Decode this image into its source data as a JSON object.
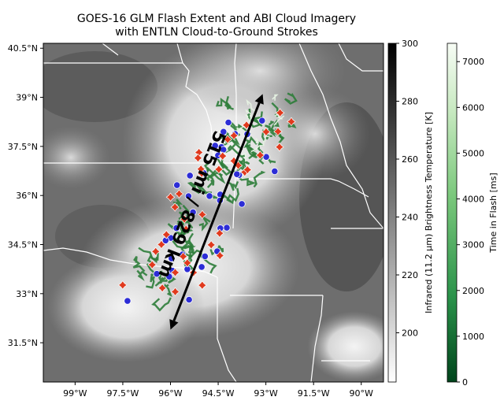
{
  "title_line1": "GOES-16 GLM Flash Extent and ABI Cloud Imagery",
  "title_line2": "with ENTLN Cloud-to-Ground Strokes",
  "map": {
    "lon_ticks": [
      "99°W",
      "97.5°W",
      "96°W",
      "94.5°W",
      "93°W",
      "91.5°W",
      "90°W"
    ],
    "lon_values": [
      -99,
      -97.5,
      -96,
      -94.5,
      -93,
      -91.5,
      -90
    ],
    "lat_ticks": [
      "40.5°N",
      "39°N",
      "37.5°N",
      "36°N",
      "34.5°N",
      "33°N",
      "31.5°N"
    ],
    "lat_values": [
      40.5,
      39,
      37.5,
      36,
      34.5,
      33,
      31.5
    ],
    "lon_range": [
      -100.0,
      -89.3
    ],
    "lat_range": [
      30.3,
      40.65
    ],
    "annotation": "515 mi / 829 km",
    "arrow_start": {
      "lon": -96.0,
      "lat": 31.9
    },
    "arrow_end": {
      "lon": -93.1,
      "lat": 39.1
    },
    "positive_strokes_color": "#2d2dd6",
    "negative_strokes_color": "#e03a1e",
    "flash_color": "#2e7d3a"
  },
  "colorbar_ir": {
    "label": "Infrared (11.2 μm) Brightness Temperature [K]",
    "ticks": [
      "300",
      "280",
      "260",
      "240",
      "220",
      "200"
    ],
    "tick_values": [
      300,
      280,
      260,
      240,
      220,
      200
    ],
    "range": [
      183,
      300
    ]
  },
  "colorbar_flash": {
    "label": "Time in Flash [ms]",
    "ticks": [
      "7000",
      "6000",
      "5000",
      "4000",
      "3000",
      "2000",
      "1000",
      "0"
    ],
    "tick_values": [
      7000,
      6000,
      5000,
      4000,
      3000,
      2000,
      1000,
      0
    ],
    "range": [
      0,
      7400
    ]
  }
}
